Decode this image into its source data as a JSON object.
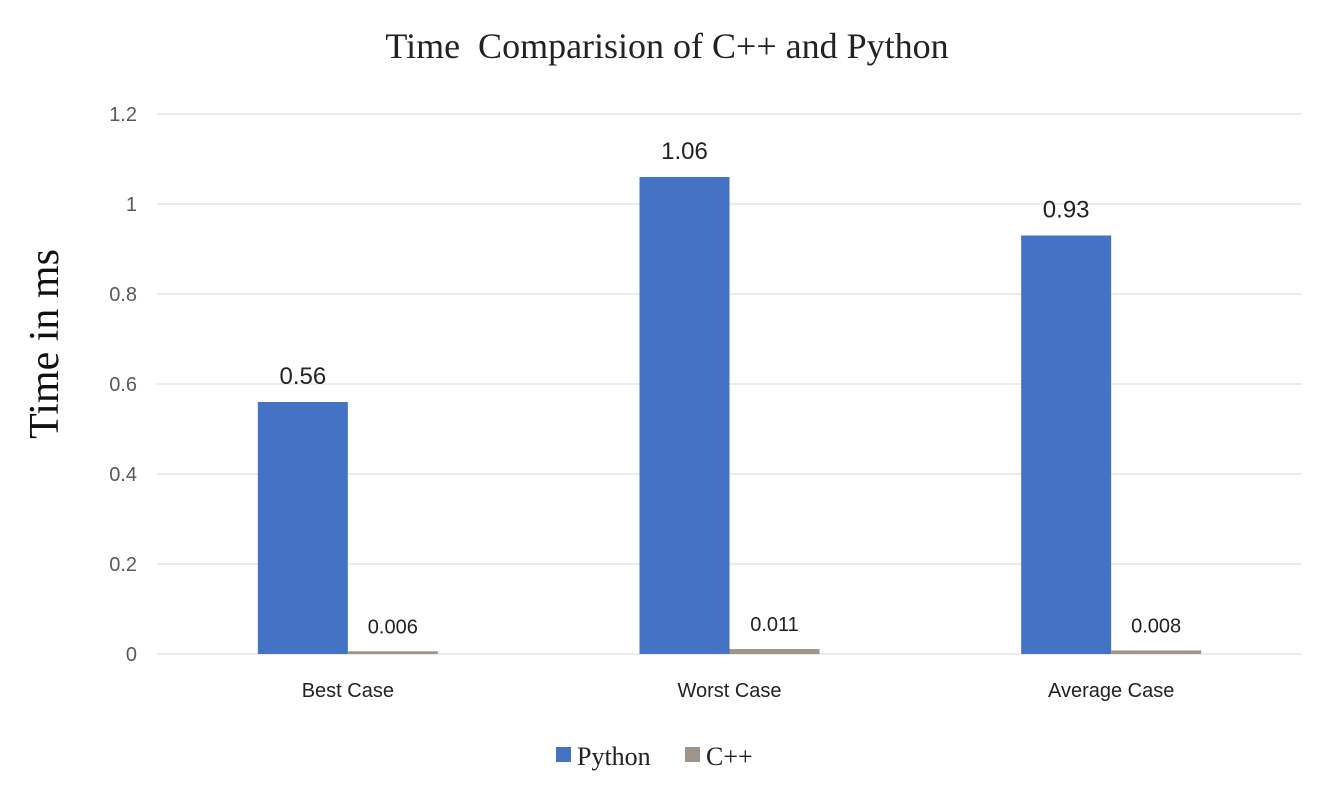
{
  "chart_data": {
    "type": "bar",
    "title": "Time  Comparision of C++ and Python",
    "xlabel": "",
    "ylabel": "Time in ms",
    "categories": [
      "Best Case",
      "Worst Case",
      "Average Case"
    ],
    "series": [
      {
        "name": "Python",
        "values": [
          0.56,
          1.06,
          0.93
        ],
        "labels": [
          "0.56",
          "1.06",
          "0.93"
        ],
        "color": "#4472c4"
      },
      {
        "name": "C++",
        "values": [
          0.006,
          0.011,
          0.008
        ],
        "labels": [
          "0.006",
          "0.011",
          "0.008"
        ],
        "color": "#a09488"
      }
    ],
    "ylim": [
      0,
      1.2
    ],
    "yticks": [
      0,
      0.2,
      0.4,
      0.6,
      0.8,
      1,
      1.2
    ],
    "ytick_labels": [
      "0",
      "0.2",
      "0.4",
      "0.6",
      "0.8",
      "1",
      "1.2"
    ],
    "grid": true,
    "legend_position": "bottom"
  }
}
